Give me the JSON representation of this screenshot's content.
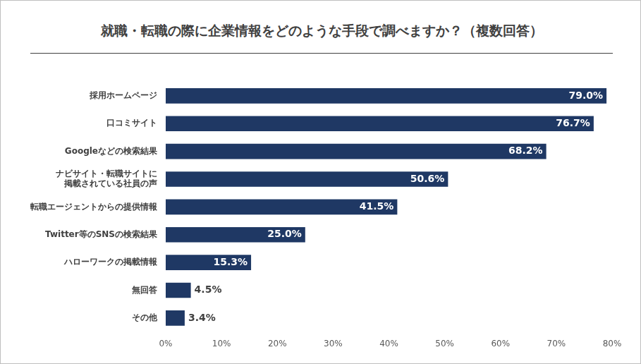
{
  "chart_data": {
    "type": "bar",
    "title": "就職・転職の際に企業情報をどのような手段で調べますか？（複数回答）",
    "orientation": "horizontal",
    "categories": [
      "採用ホームページ",
      "口コミサイト",
      "Googleなどの検索結果",
      "ナビサイト・転職サイトに\n掲載されている社員の声",
      "転職エージェントからの提供情報",
      "Twitter等のSNSの検索結果",
      "ハローワークの掲載情報",
      "無回答",
      "その他"
    ],
    "values": [
      79.0,
      76.7,
      68.2,
      50.6,
      41.5,
      25.0,
      15.3,
      4.5,
      3.4
    ],
    "value_labels": [
      "79.0%",
      "76.7%",
      "68.2%",
      "50.6%",
      "41.5%",
      "25.0%",
      "15.3%",
      "4.5%",
      "3.4%"
    ],
    "data_labels": true,
    "color": "#1f3864",
    "xlim": [
      0,
      80
    ],
    "xticks": [
      {
        "value": 0,
        "label": "0%"
      },
      {
        "value": 10,
        "label": "10%"
      },
      {
        "value": 20,
        "label": "20%"
      },
      {
        "value": 30,
        "label": "30%"
      },
      {
        "value": 40,
        "label": "40%"
      },
      {
        "value": 50,
        "label": "50%"
      },
      {
        "value": 60,
        "label": "60%"
      },
      {
        "value": 70,
        "label": "70%"
      },
      {
        "value": 80,
        "label": "80%"
      }
    ],
    "grid": false
  }
}
